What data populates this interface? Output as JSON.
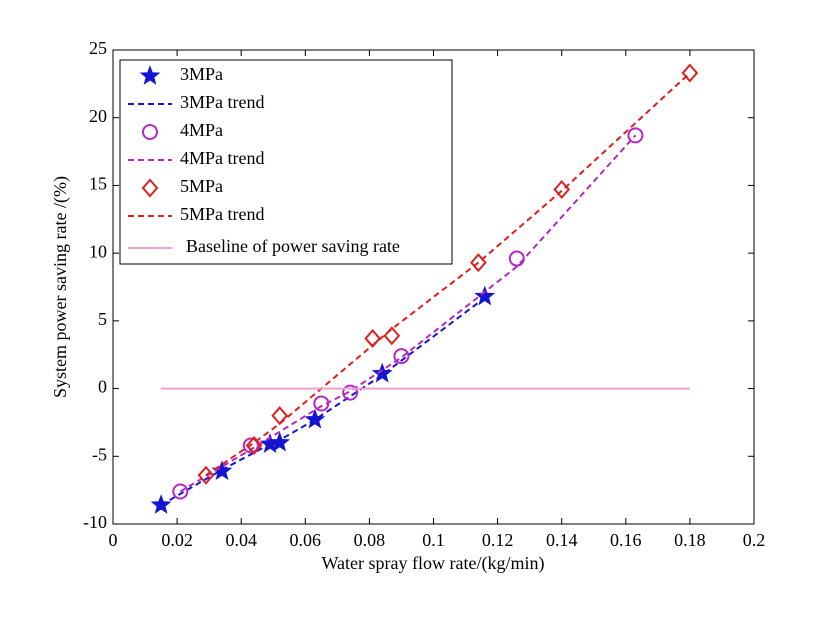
{
  "chart_data": {
    "type": "line",
    "xlabel": "Water spray flow rate/(kg/min)",
    "ylabel": "System power saving rate /(%)",
    "xlim": [
      0,
      0.2
    ],
    "xticks": [
      0,
      0.02,
      0.04,
      0.06,
      0.08,
      0.1,
      0.12,
      0.14,
      0.16,
      0.18,
      0.2
    ],
    "ylim": [
      -10,
      25
    ],
    "yticks": [
      -10,
      -5,
      0,
      5,
      10,
      15,
      20,
      25
    ],
    "grid": false,
    "legend": "upper left",
    "series": [
      {
        "name": "3MPa",
        "color": "#1414d2",
        "marker": "star",
        "line": "none",
        "x": [
          0.015,
          0.034,
          0.049,
          0.052,
          0.063,
          0.084,
          0.116
        ],
        "values": [
          -8.6,
          -6.1,
          -4.1,
          -4.0,
          -2.3,
          1.1,
          6.8
        ]
      },
      {
        "name": "3MPa trend",
        "color": "#1414d2",
        "marker": "none",
        "line": "dashed",
        "x": [
          0.015,
          0.034,
          0.049,
          0.052,
          0.063,
          0.084,
          0.116
        ],
        "values": [
          -8.6,
          -6.0,
          -4.1,
          -3.8,
          -2.3,
          1.0,
          6.7
        ]
      },
      {
        "name": "4MPa",
        "color": "#b428c3",
        "marker": "circle",
        "line": "none",
        "x": [
          0.021,
          0.043,
          0.065,
          0.074,
          0.09,
          0.126,
          0.163
        ],
        "values": [
          -7.6,
          -4.2,
          -1.1,
          -0.3,
          2.4,
          9.6,
          18.7
        ]
      },
      {
        "name": "4MPa trend",
        "color": "#b428c3",
        "marker": "none",
        "line": "dashed",
        "x": [
          0.021,
          0.043,
          0.065,
          0.074,
          0.09,
          0.126,
          0.163
        ],
        "values": [
          -7.6,
          -4.5,
          -1.3,
          -0.2,
          2.3,
          9.0,
          18.7
        ]
      },
      {
        "name": "5MPa",
        "color": "#e01e1e",
        "marker": "diamond",
        "line": "none",
        "x": [
          0.029,
          0.044,
          0.052,
          0.081,
          0.087,
          0.114,
          0.14,
          0.18
        ],
        "values": [
          -6.4,
          -4.2,
          -2.0,
          3.7,
          3.9,
          9.3,
          14.7,
          23.3
        ]
      },
      {
        "name": "5MPa trend",
        "color": "#e01e1e",
        "marker": "none",
        "line": "dashed",
        "x": [
          0.029,
          0.044,
          0.052,
          0.081,
          0.087,
          0.114,
          0.14,
          0.18
        ],
        "values": [
          -6.4,
          -4.0,
          -2.6,
          3.2,
          4.4,
          9.3,
          14.6,
          23.3
        ]
      },
      {
        "name": "Baseline of power saving rate",
        "color": "#f0a0cc",
        "marker": "none",
        "line": "solid",
        "x": [
          0.015,
          0.18
        ],
        "values": [
          0,
          0
        ]
      }
    ]
  }
}
